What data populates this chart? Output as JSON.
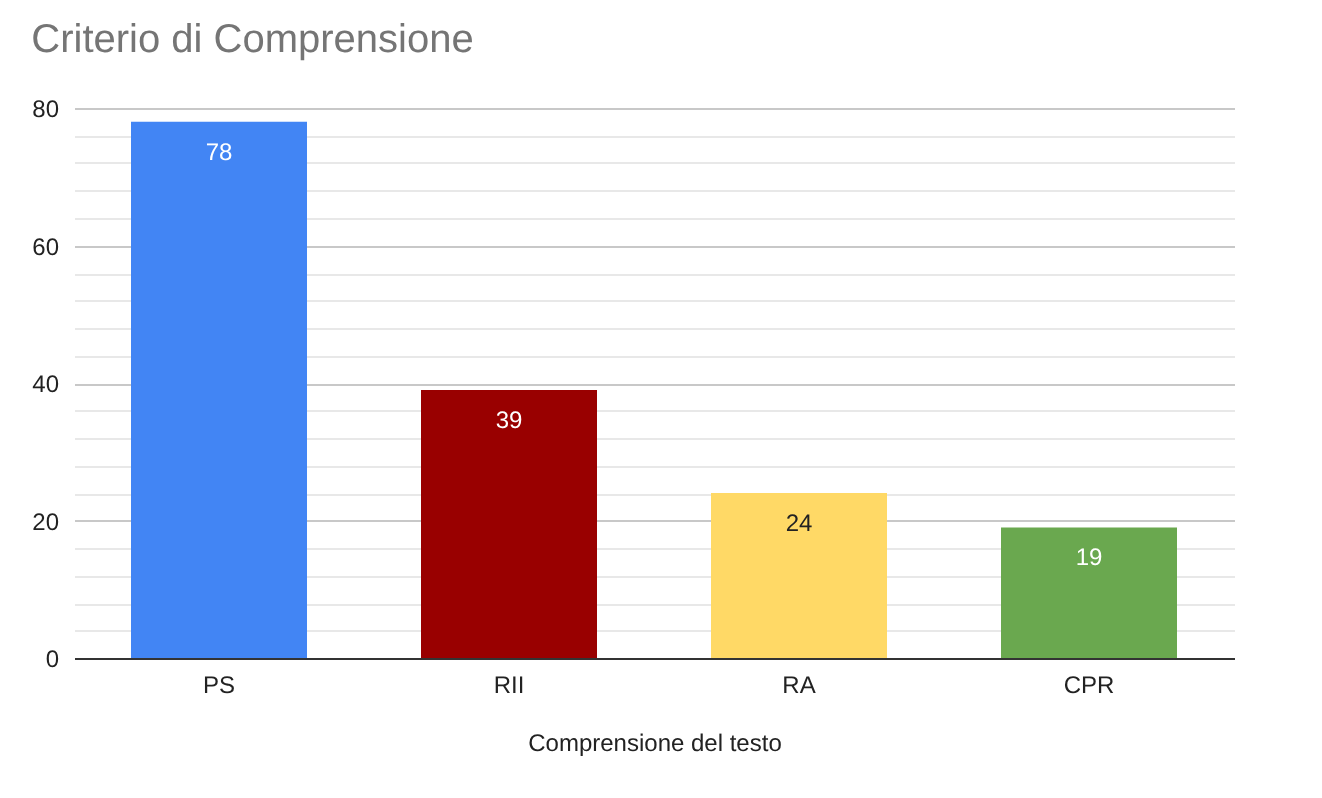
{
  "chart_data": {
    "type": "bar",
    "title": "Criterio di Comprensione",
    "xlabel": "Comprensione del testo",
    "categories": [
      "PS",
      "RII",
      "RA",
      "CPR"
    ],
    "values": [
      78,
      39,
      24,
      19
    ],
    "colors": [
      "#4285f4",
      "#990000",
      "#ffd966",
      "#6aa84f"
    ],
    "ylim": [
      0,
      80
    ],
    "yticks": [
      0,
      {
        "value": 4,
        "label": null
      },
      {
        "value": 8,
        "label": null
      },
      {
        "value": 12,
        "label": null
      },
      {
        "value": 16,
        "label": null
      },
      20,
      {
        "value": 24,
        "label": null
      },
      {
        "value": 28,
        "label": null
      },
      {
        "value": 32,
        "label": null
      },
      {
        "value": 36,
        "label": null
      },
      40,
      {
        "value": 44,
        "label": null
      },
      {
        "value": 48,
        "label": null
      },
      {
        "value": 52,
        "label": null
      },
      {
        "value": 56,
        "label": null
      },
      60,
      {
        "value": 64,
        "label": null
      },
      {
        "value": 68,
        "label": null
      },
      {
        "value": 72,
        "label": null
      },
      {
        "value": 76,
        "label": null
      },
      80
    ],
    "grid": "y",
    "data_labels": true,
    "legend": false
  }
}
